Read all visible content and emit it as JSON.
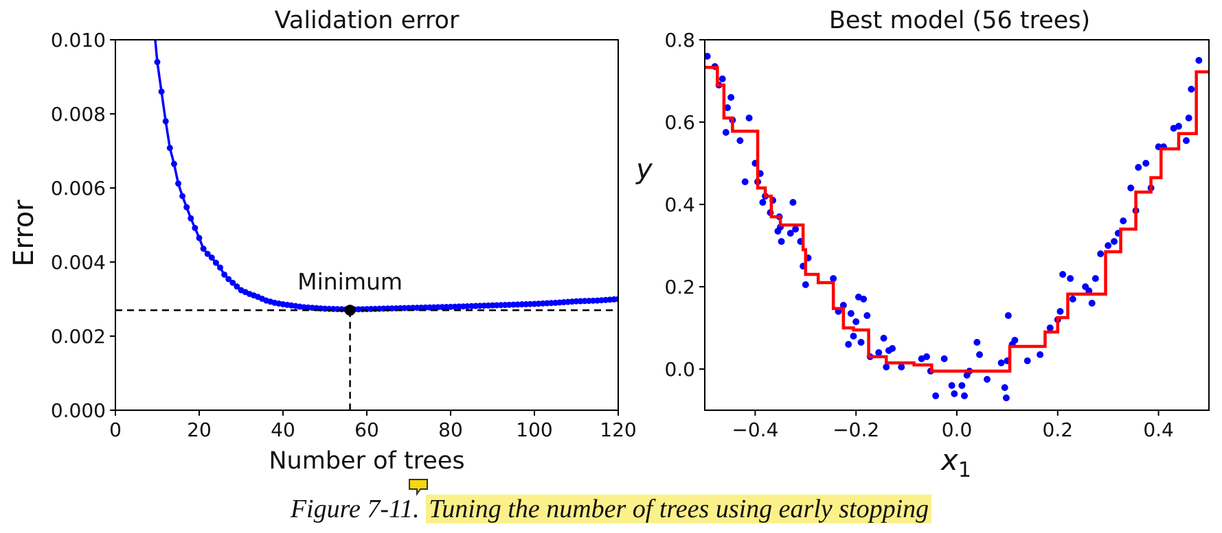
{
  "chart_data": [
    {
      "type": "line",
      "title": "Validation error",
      "xlabel": "Number of trees",
      "ylabel": "Error",
      "xlim": [
        0,
        120
      ],
      "ylim": [
        0,
        0.01
      ],
      "xticks": [
        "0",
        "20",
        "40",
        "60",
        "80",
        "100",
        "120"
      ],
      "yticks": [
        "0.000",
        "0.002",
        "0.004",
        "0.006",
        "0.008",
        "0.010"
      ],
      "color": "#0000ff",
      "x": [
        9,
        10,
        11,
        12,
        13,
        14,
        15,
        16,
        17,
        18,
        19,
        20,
        21,
        22,
        23,
        24,
        25,
        26,
        27,
        28,
        29,
        30,
        32,
        34,
        36,
        38,
        40,
        45,
        50,
        56,
        60,
        70,
        80,
        90,
        100,
        105,
        110,
        115,
        120
      ],
      "y": [
        0.0106,
        0.0094,
        0.0086,
        0.0078,
        0.00708,
        0.00665,
        0.00612,
        0.00578,
        0.00548,
        0.00518,
        0.00492,
        0.00465,
        0.00436,
        0.00422,
        0.00412,
        0.00398,
        0.00385,
        0.00366,
        0.00354,
        0.00344,
        0.00334,
        0.00324,
        0.00314,
        0.00306,
        0.00296,
        0.0029,
        0.00286,
        0.00278,
        0.00274,
        0.00272,
        0.00273,
        0.00276,
        0.00279,
        0.00283,
        0.00287,
        0.0029,
        0.00294,
        0.00296,
        0.003
      ],
      "minimum": {
        "x": 56,
        "y": 0.0027,
        "label": "Minimum"
      }
    },
    {
      "type": "scatter",
      "title": "Best model (56 trees)",
      "xlabel": "x1",
      "ylabel": "y",
      "xlim": [
        -0.5,
        0.5
      ],
      "ylim": [
        -0.1,
        0.8
      ],
      "xticks": [
        "−0.4",
        "−0.2",
        "0.0",
        "0.2",
        "0.4"
      ],
      "yticks": [
        "0.0",
        "0.2",
        "0.4",
        "0.6",
        "0.8"
      ],
      "points_color": "#0000ff",
      "points": [
        [
          -0.495,
          0.76
        ],
        [
          -0.48,
          0.735
        ],
        [
          -0.472,
          0.69
        ],
        [
          -0.465,
          0.705
        ],
        [
          -0.458,
          0.575
        ],
        [
          -0.455,
          0.635
        ],
        [
          -0.448,
          0.66
        ],
        [
          -0.445,
          0.605
        ],
        [
          -0.43,
          0.555
        ],
        [
          -0.42,
          0.455
        ],
        [
          -0.412,
          0.61
        ],
        [
          -0.4,
          0.5
        ],
        [
          -0.395,
          0.455
        ],
        [
          -0.39,
          0.475
        ],
        [
          -0.385,
          0.405
        ],
        [
          -0.38,
          0.42
        ],
        [
          -0.37,
          0.38
        ],
        [
          -0.365,
          0.41
        ],
        [
          -0.355,
          0.335
        ],
        [
          -0.352,
          0.37
        ],
        [
          -0.35,
          0.345
        ],
        [
          -0.348,
          0.31
        ],
        [
          -0.33,
          0.33
        ],
        [
          -0.325,
          0.405
        ],
        [
          -0.32,
          0.34
        ],
        [
          -0.31,
          0.31
        ],
        [
          -0.305,
          0.25
        ],
        [
          -0.3,
          0.205
        ],
        [
          -0.295,
          0.27
        ],
        [
          -0.245,
          0.22
        ],
        [
          -0.235,
          0.14
        ],
        [
          -0.225,
          0.155
        ],
        [
          -0.215,
          0.06
        ],
        [
          -0.21,
          0.135
        ],
        [
          -0.205,
          0.08
        ],
        [
          -0.2,
          0.115
        ],
        [
          -0.195,
          0.175
        ],
        [
          -0.19,
          0.065
        ],
        [
          -0.185,
          0.17
        ],
        [
          -0.178,
          0.13
        ],
        [
          -0.172,
          0.03
        ],
        [
          -0.155,
          0.04
        ],
        [
          -0.145,
          0.075
        ],
        [
          -0.14,
          0.005
        ],
        [
          -0.135,
          0.045
        ],
        [
          -0.128,
          0.05
        ],
        [
          -0.11,
          0.005
        ],
        [
          -0.07,
          0.025
        ],
        [
          -0.06,
          0.03
        ],
        [
          -0.052,
          -0.005
        ],
        [
          -0.042,
          -0.065
        ],
        [
          -0.025,
          0.025
        ],
        [
          -0.01,
          -0.04
        ],
        [
          -0.005,
          -0.06
        ],
        [
          0.01,
          -0.04
        ],
        [
          0.015,
          -0.065
        ],
        [
          0.02,
          -0.015
        ],
        [
          0.025,
          -0.005
        ],
        [
          0.04,
          0.065
        ],
        [
          0.045,
          0.035
        ],
        [
          0.06,
          -0.025
        ],
        [
          0.088,
          0.015
        ],
        [
          0.095,
          -0.045
        ],
        [
          0.098,
          -0.07
        ],
        [
          0.1,
          0.02
        ],
        [
          0.102,
          0.13
        ],
        [
          0.11,
          0.06
        ],
        [
          0.115,
          0.07
        ],
        [
          0.14,
          0.02
        ],
        [
          0.165,
          0.035
        ],
        [
          0.185,
          0.1
        ],
        [
          0.2,
          0.12
        ],
        [
          0.205,
          0.14
        ],
        [
          0.21,
          0.23
        ],
        [
          0.225,
          0.22
        ],
        [
          0.23,
          0.17
        ],
        [
          0.255,
          0.2
        ],
        [
          0.262,
          0.19
        ],
        [
          0.268,
          0.16
        ],
        [
          0.275,
          0.22
        ],
        [
          0.285,
          0.28
        ],
        [
          0.3,
          0.3
        ],
        [
          0.312,
          0.31
        ],
        [
          0.32,
          0.33
        ],
        [
          0.33,
          0.36
        ],
        [
          0.345,
          0.44
        ],
        [
          0.355,
          0.385
        ],
        [
          0.36,
          0.49
        ],
        [
          0.375,
          0.5
        ],
        [
          0.385,
          0.44
        ],
        [
          0.4,
          0.54
        ],
        [
          0.41,
          0.54
        ],
        [
          0.43,
          0.585
        ],
        [
          0.44,
          0.59
        ],
        [
          0.455,
          0.555
        ],
        [
          0.46,
          0.61
        ],
        [
          0.465,
          0.68
        ],
        [
          0.48,
          0.75
        ]
      ],
      "step_color": "#ff0000",
      "step": [
        [
          -0.5,
          0.733
        ],
        [
          -0.475,
          0.733
        ],
        [
          -0.475,
          0.69
        ],
        [
          -0.462,
          0.69
        ],
        [
          -0.462,
          0.61
        ],
        [
          -0.445,
          0.61
        ],
        [
          -0.445,
          0.578
        ],
        [
          -0.395,
          0.578
        ],
        [
          -0.395,
          0.44
        ],
        [
          -0.38,
          0.44
        ],
        [
          -0.38,
          0.42
        ],
        [
          -0.368,
          0.42
        ],
        [
          -0.368,
          0.37
        ],
        [
          -0.35,
          0.37
        ],
        [
          -0.35,
          0.35
        ],
        [
          -0.305,
          0.35
        ],
        [
          -0.305,
          0.29
        ],
        [
          -0.3,
          0.29
        ],
        [
          -0.3,
          0.23
        ],
        [
          -0.275,
          0.23
        ],
        [
          -0.275,
          0.21
        ],
        [
          -0.245,
          0.21
        ],
        [
          -0.245,
          0.147
        ],
        [
          -0.225,
          0.147
        ],
        [
          -0.225,
          0.1
        ],
        [
          -0.205,
          0.1
        ],
        [
          -0.205,
          0.095
        ],
        [
          -0.175,
          0.095
        ],
        [
          -0.175,
          0.03
        ],
        [
          -0.14,
          0.03
        ],
        [
          -0.14,
          0.015
        ],
        [
          -0.085,
          0.015
        ],
        [
          -0.085,
          0.01
        ],
        [
          -0.05,
          0.01
        ],
        [
          -0.05,
          -0.005
        ],
        [
          0.105,
          -0.005
        ],
        [
          0.105,
          0.055
        ],
        [
          0.175,
          0.055
        ],
        [
          0.175,
          0.09
        ],
        [
          0.2,
          0.09
        ],
        [
          0.2,
          0.125
        ],
        [
          0.22,
          0.125
        ],
        [
          0.22,
          0.182
        ],
        [
          0.295,
          0.182
        ],
        [
          0.295,
          0.285
        ],
        [
          0.325,
          0.285
        ],
        [
          0.325,
          0.34
        ],
        [
          0.355,
          0.34
        ],
        [
          0.355,
          0.43
        ],
        [
          0.385,
          0.43
        ],
        [
          0.385,
          0.465
        ],
        [
          0.405,
          0.465
        ],
        [
          0.405,
          0.535
        ],
        [
          0.44,
          0.535
        ],
        [
          0.44,
          0.572
        ],
        [
          0.475,
          0.572
        ],
        [
          0.475,
          0.722
        ],
        [
          0.5,
          0.722
        ]
      ]
    }
  ],
  "caption": {
    "prefix": "Figure 7-11. ",
    "text": "Tuning the number of trees using early stopping",
    "highlight_color": "#fbf08a"
  },
  "icons": {
    "comment": "comment-icon"
  }
}
